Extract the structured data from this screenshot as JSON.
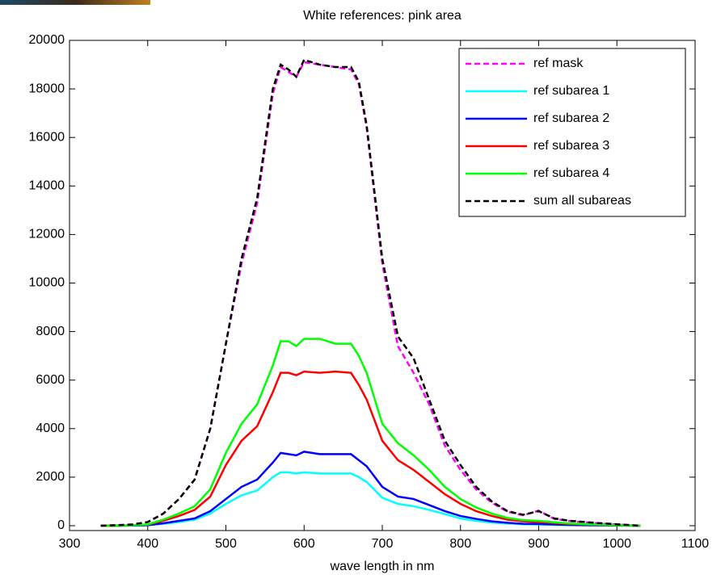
{
  "chart_data": {
    "type": "line",
    "title": "White references: pink area",
    "x_label": "wave length in nm",
    "x": [
      340,
      360,
      380,
      400,
      420,
      440,
      460,
      480,
      500,
      520,
      540,
      560,
      570,
      580,
      590,
      600,
      620,
      640,
      660,
      670,
      680,
      700,
      720,
      740,
      760,
      780,
      800,
      820,
      840,
      860,
      880,
      900,
      920,
      940,
      960,
      980,
      1000,
      1030
    ],
    "series": [
      {
        "name": "ref mask",
        "color": "#ff00ff",
        "linestyle": "--",
        "values": [
          0,
          20,
          50,
          150,
          500,
          1100,
          1900,
          4000,
          7500,
          10800,
          13300,
          17800,
          18900,
          18700,
          18500,
          19100,
          19000,
          18900,
          18800,
          18200,
          16400,
          10800,
          7400,
          6300,
          5000,
          3300,
          2300,
          1500,
          950,
          580,
          430,
          620,
          280,
          190,
          140,
          90,
          50,
          0
        ]
      },
      {
        "name": "ref subarea 1",
        "color": "#00ffff",
        "linestyle": "-",
        "values": [
          0,
          0,
          10,
          20,
          80,
          150,
          250,
          500,
          900,
          1250,
          1450,
          2000,
          2200,
          2200,
          2150,
          2200,
          2150,
          2150,
          2150,
          2000,
          1800,
          1150,
          900,
          800,
          650,
          480,
          300,
          200,
          130,
          90,
          60,
          50,
          35,
          25,
          15,
          10,
          5,
          0
        ]
      },
      {
        "name": "ref subarea 2",
        "color": "#0000ff",
        "linestyle": "-",
        "values": [
          0,
          0,
          10,
          20,
          100,
          200,
          300,
          600,
          1100,
          1600,
          1900,
          2600,
          3000,
          2950,
          2900,
          3050,
          2950,
          2950,
          2950,
          2700,
          2450,
          1600,
          1200,
          1100,
          850,
          600,
          400,
          280,
          180,
          120,
          80,
          70,
          50,
          30,
          20,
          15,
          10,
          0
        ]
      },
      {
        "name": "ref subarea 3",
        "color": "#ff0000",
        "linestyle": "-",
        "values": [
          0,
          0,
          20,
          40,
          200,
          400,
          650,
          1200,
          2500,
          3500,
          4100,
          5500,
          6300,
          6300,
          6200,
          6350,
          6300,
          6350,
          6300,
          5800,
          5200,
          3500,
          2700,
          2300,
          1800,
          1300,
          900,
          600,
          400,
          250,
          180,
          150,
          110,
          70,
          50,
          30,
          15,
          0
        ]
      },
      {
        "name": "ref subarea 4",
        "color": "#00ff00",
        "linestyle": "-",
        "values": [
          0,
          0,
          20,
          50,
          250,
          500,
          800,
          1500,
          3000,
          4200,
          5000,
          6600,
          7600,
          7600,
          7400,
          7700,
          7700,
          7500,
          7500,
          7000,
          6300,
          4200,
          3400,
          2900,
          2300,
          1600,
          1100,
          750,
          500,
          320,
          230,
          200,
          140,
          90,
          60,
          40,
          20,
          0
        ]
      },
      {
        "name": "sum all subareas",
        "color": "#000000",
        "linestyle": "--",
        "values": [
          0,
          20,
          50,
          150,
          500,
          1100,
          1900,
          4000,
          7500,
          11000,
          13500,
          18000,
          19000,
          18800,
          18500,
          19200,
          19000,
          18900,
          18900,
          18300,
          16500,
          11000,
          7800,
          6900,
          5200,
          3500,
          2500,
          1600,
          1000,
          600,
          450,
          600,
          300,
          200,
          150,
          100,
          60,
          0
        ]
      }
    ],
    "xlim": [
      300,
      1100
    ],
    "xticks": [
      300,
      400,
      500,
      600,
      700,
      800,
      900,
      1000,
      1100
    ],
    "ylim": [
      -200,
      20000
    ],
    "yticks": [
      0,
      2000,
      4000,
      6000,
      8000,
      10000,
      12000,
      14000,
      16000,
      18000,
      20000
    ],
    "grid": false,
    "legend": "top-right"
  }
}
